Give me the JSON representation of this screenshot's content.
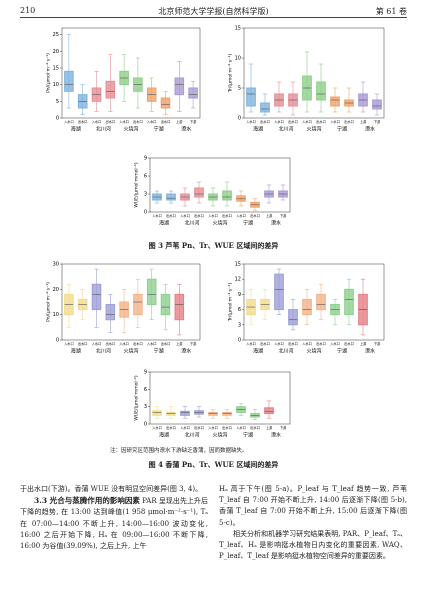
{
  "header": {
    "page": "210",
    "journal": "北京师范大学学报(自然科学版)",
    "volume": "第 61 卷"
  },
  "figures": [
    {
      "caption": "图 3  芦苇 Pn、Tr、WUE 区域间的差异",
      "charts": [
        {
          "type": "box",
          "y_label": "Pn/(μmol·m⁻²·s⁻¹)",
          "ylim": [
            0,
            27
          ],
          "yticks": [
            0,
            5,
            10,
            15,
            20,
            25
          ],
          "categories": [
            "入水口",
            "出水口",
            "入水口",
            "出水口",
            "入水口",
            "出水口",
            "入水口",
            "出水口",
            "上游",
            "下游"
          ],
          "groups": [
            "海湖",
            "北川河",
            "火烧沟",
            "宁湖",
            "潦水"
          ],
          "colors": [
            "#7fb3dc",
            "#7fb3dc",
            "#e58f96",
            "#e58f96",
            "#8fcf8a",
            "#8fcf8a",
            "#f0a36a",
            "#f0a36a",
            "#a99ad4",
            "#a99ad4"
          ],
          "boxes": [
            [
              3,
              8,
              10,
              14,
              25
            ],
            [
              1,
              3,
              5,
              7,
              10
            ],
            [
              2,
              5,
              7,
              9,
              14
            ],
            [
              2,
              6,
              8,
              11,
              19
            ],
            [
              5,
              10,
              12,
              14,
              19
            ],
            [
              3,
              8,
              10,
              12,
              18
            ],
            [
              2,
              5,
              7,
              9,
              12
            ],
            [
              1,
              3,
              4,
              6,
              8
            ],
            [
              2,
              7,
              10,
              12,
              17
            ],
            [
              3,
              6,
              7,
              9,
              11
            ]
          ]
        },
        {
          "type": "box",
          "y_label": "Tr/(μmol·m⁻²·s⁻¹)",
          "ylim": [
            0,
            15
          ],
          "yticks": [
            0,
            5,
            10,
            15
          ],
          "categories": [
            "入水口",
            "出水口",
            "入水口",
            "出水口",
            "入水口",
            "出水口",
            "入水口",
            "出水口",
            "上游",
            "下游"
          ],
          "groups": [
            "海湖",
            "北川河",
            "火烧沟",
            "宁湖",
            "潦水"
          ],
          "colors": [
            "#7fb3dc",
            "#7fb3dc",
            "#e58f96",
            "#e58f96",
            "#8fcf8a",
            "#8fcf8a",
            "#f0a36a",
            "#f0a36a",
            "#a99ad4",
            "#a99ad4"
          ],
          "boxes": [
            [
              1,
              2,
              4,
              5,
              9
            ],
            [
              0.5,
              1,
              1.5,
              2.5,
              4
            ],
            [
              1,
              2,
              3,
              4,
              6
            ],
            [
              0.5,
              2,
              3,
              4,
              6
            ],
            [
              1,
              3,
              5,
              7,
              11
            ],
            [
              1,
              3,
              4,
              6,
              9
            ],
            [
              1,
              2,
              3,
              3.5,
              5
            ],
            [
              1,
              2,
              2.5,
              3,
              5
            ],
            [
              1,
              2,
              3,
              4,
              6
            ],
            [
              0.5,
              1.5,
              2,
              3,
              4
            ]
          ]
        },
        {
          "type": "box",
          "y_label": "WUE/(μmol·mmol⁻¹)",
          "ylim": [
            0,
            9
          ],
          "yticks": [
            0,
            3,
            6,
            9
          ],
          "categories": [
            "入水口",
            "出水口",
            "入水口",
            "出水口",
            "入水口",
            "出水口",
            "入水口",
            "出水口",
            "上游",
            "下游"
          ],
          "groups": [
            "海湖",
            "北川河",
            "火烧沟",
            "宁湖",
            "潦水"
          ],
          "colors": [
            "#7fb3dc",
            "#7fb3dc",
            "#e58f96",
            "#e58f96",
            "#8fcf8a",
            "#8fcf8a",
            "#f0a36a",
            "#f0a36a",
            "#a99ad4",
            "#a99ad4"
          ],
          "boxes": [
            [
              1.5,
              2,
              2.5,
              3,
              3.5
            ],
            [
              1.5,
              2,
              2.3,
              3,
              3.5
            ],
            [
              1,
              2,
              2.5,
              3,
              4
            ],
            [
              1.5,
              2.5,
              3,
              4,
              5
            ],
            [
              1,
              2,
              2.5,
              3,
              4
            ],
            [
              1,
              2,
              2.5,
              3.5,
              5
            ],
            [
              1,
              1.8,
              2.2,
              2.7,
              3.5
            ],
            [
              0.3,
              0.8,
              1.2,
              1.6,
              2.2
            ],
            [
              1.5,
              2.5,
              3,
              3.5,
              4.5
            ],
            [
              2,
              2.5,
              3,
              3.5,
              4.5
            ]
          ]
        }
      ]
    },
    {
      "caption": "图 4  香蒲 Pn、Tr、WUE 区域间的差异",
      "note": "注：因研究区范围内潦水下游缺乏香蒲，因而数据缺失。",
      "charts": [
        {
          "type": "box",
          "y_label": "Pn/(μmol·m⁻²·s⁻¹)",
          "ylim": [
            0,
            30
          ],
          "yticks": [
            0,
            10,
            20,
            30
          ],
          "categories": [
            "入水口",
            "出水口",
            "入水口",
            "出水口",
            "入水口",
            "出水口",
            "入水口",
            "出水口",
            "上游",
            "下游"
          ],
          "groups": [
            "海湖",
            "北川河",
            "火烧沟",
            "宁湖",
            "潦水"
          ],
          "colors": [
            "#f3dc8c",
            "#f3dc8c",
            "#9d9fd6",
            "#9d9fd6",
            "#f2b48a",
            "#f2b48a",
            "#8fd08f",
            "#8fd08f",
            "#e57f86",
            "#e57f86"
          ],
          "boxes": [
            [
              5,
              10,
              14,
              18,
              22
            ],
            [
              8,
              12,
              14,
              16,
              20
            ],
            [
              5,
              12,
              18,
              22,
              28
            ],
            [
              3,
              8,
              10,
              14,
              18
            ],
            [
              3,
              9,
              12,
              15,
              20
            ],
            [
              5,
              10,
              15,
              18,
              24
            ],
            [
              8,
              14,
              18,
              24,
              28
            ],
            [
              4,
              10,
              13,
              18,
              22
            ],
            [
              2,
              8,
              14,
              18,
              22
            ],
            null
          ]
        },
        {
          "type": "box",
          "y_label": "Tr/(μmol·m⁻²·s⁻¹)",
          "ylim": [
            0,
            15
          ],
          "yticks": [
            0,
            3,
            6,
            9,
            12,
            15
          ],
          "categories": [
            "入水口",
            "出水口",
            "入水口",
            "出水口",
            "入水口",
            "出水口",
            "入水口",
            "出水口",
            "上游",
            "下游"
          ],
          "groups": [
            "海湖",
            "北川河",
            "火烧沟",
            "宁湖",
            "潦水"
          ],
          "colors": [
            "#f3dc8c",
            "#f3dc8c",
            "#9d9fd6",
            "#9d9fd6",
            "#f2b48a",
            "#f2b48a",
            "#8fd08f",
            "#8fd08f",
            "#e57f86",
            "#e57f86"
          ],
          "boxes": [
            [
              3,
              5,
              6.5,
              8,
              10
            ],
            [
              4,
              6,
              7,
              8,
              10
            ],
            [
              5,
              6,
              10,
              13,
              14
            ],
            [
              2,
              3,
              4,
              6,
              8
            ],
            [
              3,
              5,
              6,
              8,
              10
            ],
            [
              4,
              6,
              7,
              9,
              11
            ],
            [
              3,
              5,
              6,
              7,
              8
            ],
            [
              3,
              5,
              8,
              10,
              12
            ],
            [
              1,
              3,
              6,
              9,
              12
            ],
            null
          ]
        },
        {
          "type": "box",
          "y_label": "WUE/(μmol·mmol⁻¹)",
          "ylim": [
            0,
            9
          ],
          "yticks": [
            0,
            3,
            6,
            9
          ],
          "categories": [
            "入水口",
            "出水口",
            "入水口",
            "出水口",
            "入水口",
            "出水口",
            "入水口",
            "出水口",
            "上游",
            "下游"
          ],
          "groups": [
            "海湖",
            "北川河",
            "火烧沟",
            "宁湖",
            "潦水"
          ],
          "colors": [
            "#f3dc8c",
            "#f3dc8c",
            "#9d9fd6",
            "#9d9fd6",
            "#f2b48a",
            "#f2b48a",
            "#8fd08f",
            "#8fd08f",
            "#e57f86",
            "#e57f86"
          ],
          "boxes": [
            [
              1,
              1.5,
              2,
              2.3,
              3
            ],
            [
              1,
              1.5,
              1.8,
              2,
              3
            ],
            [
              1,
              1.5,
              2,
              2.2,
              3
            ],
            [
              1.2,
              1.7,
              2,
              2.3,
              3
            ],
            [
              1,
              1.5,
              1.8,
              2,
              2.5
            ],
            [
              1,
              1.5,
              1.8,
              2,
              2.5
            ],
            [
              1.5,
              2,
              2.5,
              3,
              3.5
            ],
            [
              0.8,
              1.2,
              1.5,
              1.8,
              2.5
            ],
            [
              1,
              1.8,
              2.2,
              2.8,
              4
            ],
            null
          ]
        }
      ]
    }
  ],
  "body": {
    "left": [
      {
        "text": "于出水口(下游)。香蒲 WUE 没有明显空间差异(图 3, 4)。"
      },
      {
        "heading": "3.3  光合与蒸腾作用的影响因素",
        "text": "PAR 呈现出先上升后下降的趋势, 在 13:00 达到峰值(1 958 μmol·m⁻²·s⁻¹), Tₐ 在 07:00—14:00 不断上升, 14:00—16:00 波动变化, 16:00 之后开始下降, Hₐ 在 09:00—16:00 不断下降, 16:00 为谷值(39.09%), 之后上升, 上午"
      }
    ],
    "right": [
      {
        "text": "Hₐ 高于下午(图 5-a)。P_leaf 与 T_leaf 趋势一致, 芦苇 T_leaf 自 7:00 开始不断上升, 14:00 后逐渐下降(图 5-b), 香蒲 T_leaf 自 7:00 开始不断上升, 15:00 后逐渐下降(图 5-c)。"
      },
      {
        "text": "相关分析和机器学习研究结果表明, PAR、P_leaf、Tₐ、T_leaf、Hₐ 是影响挺水植物日内变化的重要因素, WAQ、P_leaf、T_leaf 是影响挺水植物空间差异的重要因素。"
      }
    ]
  }
}
